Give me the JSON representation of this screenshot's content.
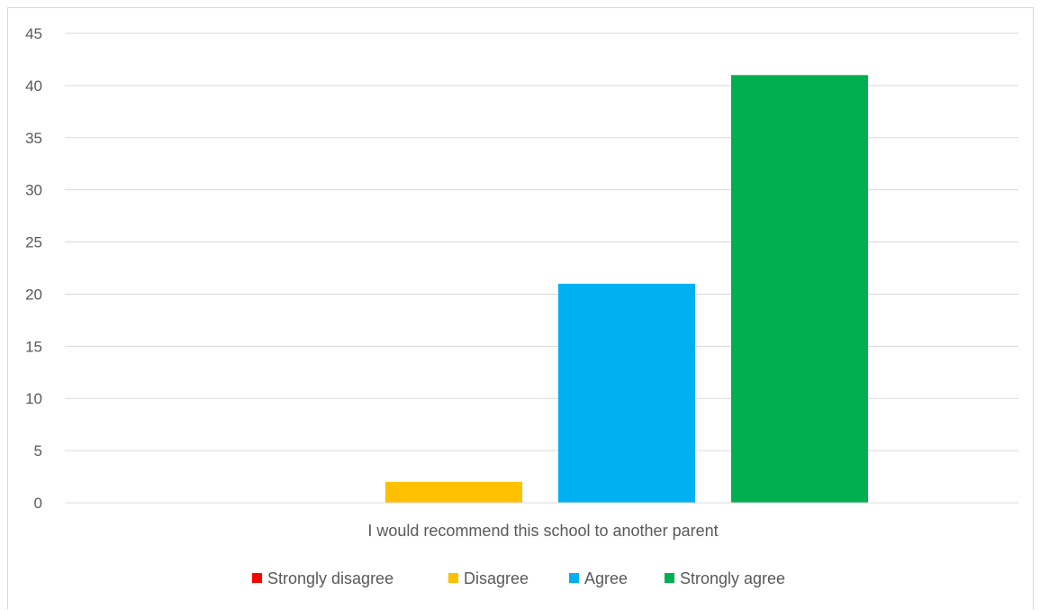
{
  "chart_data": {
    "type": "bar",
    "categories": [
      "I would recommend this school to another parent"
    ],
    "series": [
      {
        "name": "Strongly disagree",
        "values": [
          0
        ],
        "color": "#ff0000"
      },
      {
        "name": "Disagree",
        "values": [
          2
        ],
        "color": "#ffc000"
      },
      {
        "name": "Agree",
        "values": [
          21
        ],
        "color": "#00b0f0"
      },
      {
        "name": "Strongly agree",
        "values": [
          41
        ],
        "color": "#00b050"
      }
    ],
    "title": "",
    "xlabel": "",
    "ylabel": "",
    "ylim": [
      0,
      45
    ],
    "yticks": [
      0,
      5,
      10,
      15,
      20,
      25,
      30,
      35,
      40,
      45
    ],
    "grid": true,
    "legend_position": "bottom"
  }
}
